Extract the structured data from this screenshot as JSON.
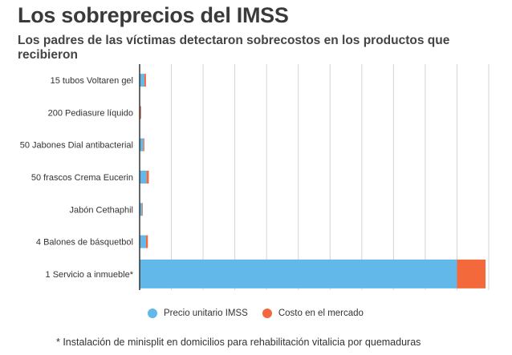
{
  "chart_data": {
    "type": "bar",
    "orientation": "horizontal",
    "stacked": true,
    "title": "Los sobreprecios del IMSS",
    "subtitle": "Los padres de las víctimas detectaron sobrecostos en los productos que recibieron",
    "categories": [
      "15 tubos Voltaren gel",
      "200 Pediasure líquido",
      "50 Jabones Dial antibacterial",
      "50 frascos Crema Eucerin",
      "Jabón Cethaphil",
      "4 Balones de básquetbol",
      "1 Servicio a inmueble*"
    ],
    "series": [
      {
        "name": "Precio unitario IMSS",
        "color": "#62b8e8",
        "values": [
          1.5,
          0.3,
          1.2,
          2.2,
          0.8,
          2.0,
          100
        ]
      },
      {
        "name": "Costo en el mercado",
        "color": "#f4693b",
        "values": [
          0.5,
          0.1,
          0.3,
          0.7,
          0.2,
          0.6,
          9
        ]
      }
    ],
    "xlim": [
      0,
      110
    ],
    "grid": true,
    "gridlines": 11,
    "legend_position": "bottom",
    "footnote": "* Instalación de minisplit en domicilios para rehabilitación vitalicia por quemaduras"
  }
}
